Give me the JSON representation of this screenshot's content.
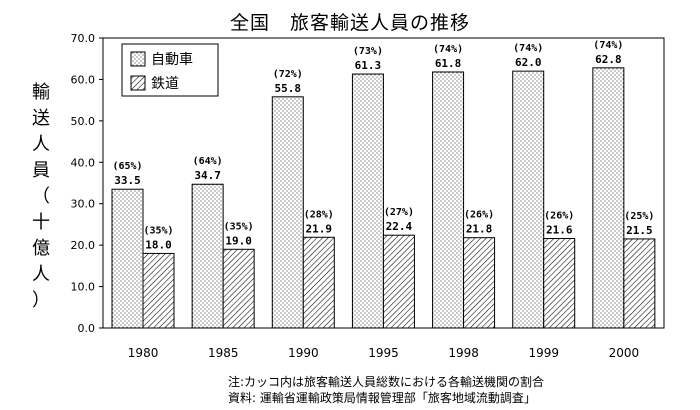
{
  "chart_data": {
    "type": "bar",
    "title": "全国　旅客輸送人員の推移",
    "ylabel": "輸送人員（十億人）",
    "xlabel": "",
    "ylim": [
      0,
      70
    ],
    "yticks": [
      "0.0",
      "10.0",
      "20.0",
      "30.0",
      "40.0",
      "50.0",
      "60.0",
      "70.0"
    ],
    "categories": [
      "1980",
      "1985",
      "1990",
      "1995",
      "1998",
      "1999",
      "2000"
    ],
    "series": [
      {
        "name": "自動車",
        "values": [
          33.5,
          34.7,
          55.8,
          61.3,
          61.8,
          62.0,
          62.8
        ],
        "value_labels": [
          "33.5",
          "34.7",
          "55.8",
          "61.3",
          "61.8",
          "62.0",
          "62.8"
        ],
        "share_labels": [
          "(65%)",
          "(64%)",
          "(72%)",
          "(73%)",
          "(74%)",
          "(74%)",
          "(74%)"
        ],
        "pattern": "dots"
      },
      {
        "name": "鉄道",
        "values": [
          18.0,
          19.0,
          21.9,
          22.4,
          21.8,
          21.6,
          21.5
        ],
        "value_labels": [
          "18.0",
          "19.0",
          "21.9",
          "22.4",
          "21.8",
          "21.6",
          "21.5"
        ],
        "share_labels": [
          "(35%)",
          "(35%)",
          "(28%)",
          "(27%)",
          "(26%)",
          "(26%)",
          "(25%)"
        ],
        "pattern": "hatch"
      }
    ],
    "legend_placement": "top-left",
    "grid": false
  },
  "notes": [
    "注:カッコ内は旅客輸送人員総数における各輸送機関の割合",
    "資料: 運輸省運輸政策局情報管理部「旅客地域流動調査」"
  ]
}
